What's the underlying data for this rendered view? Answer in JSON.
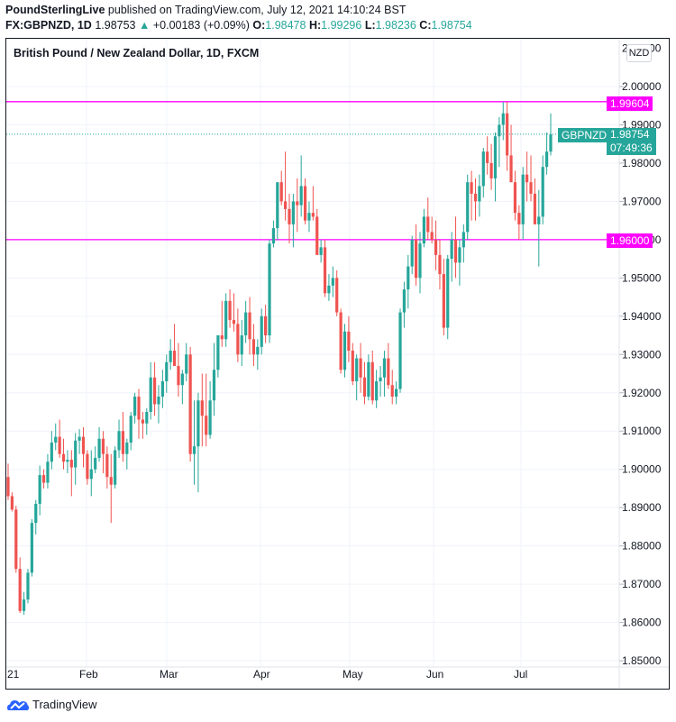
{
  "header": {
    "publisher": "PoundSterlingLive",
    "published_text": "published on TradingView.com, July 12, 2021 14:10:24 BST",
    "symbol": "FX:GBPNZD, 1D",
    "last": "1.98753",
    "change_arrow": "▲",
    "change": "+0.00183 (+0.09%)",
    "o_label": "O:",
    "o_value": "1.98478",
    "h_label": "H:",
    "h_value": "1.99296",
    "l_label": "L:",
    "l_value": "1.98236",
    "c_label": "C:",
    "c_value": "1.98754"
  },
  "chart": {
    "title": "British Pound / New Zealand Dollar, 1D, FXCM",
    "currency_badge": "NZD",
    "symbol_tag": "GBPNZD",
    "price_tag": "1.98754",
    "countdown": "07:49:36",
    "line_upper": "1.99604",
    "line_lower": "1.96000",
    "colors": {
      "up": "#26a69a",
      "down": "#ef5350",
      "hline": "#ff00ff",
      "grid": "#f0f3fa"
    }
  },
  "footer": {
    "brand": "TradingView"
  },
  "chart_data": {
    "type": "candlestick",
    "title": "British Pound / New Zealand Dollar, 1D, FXCM",
    "xlabel": "",
    "ylabel": "NZD",
    "x_tick_labels": [
      "21",
      "Feb",
      "Mar",
      "Apr",
      "May",
      "Jun",
      "Jul"
    ],
    "y_tick_labels": [
      "1.85000",
      "1.86000",
      "1.87000",
      "1.88000",
      "1.89000",
      "1.90000",
      "1.91000",
      "1.92000",
      "1.93000",
      "1.94000",
      "1.95000",
      "1.96000",
      "1.97000",
      "1.98000",
      "1.99000",
      "2.00000"
    ],
    "ylim": [
      1.85,
      2.01
    ],
    "horizontal_lines": [
      1.99604,
      1.96
    ],
    "last_price": 1.98754,
    "ohlc": [
      [
        1.898,
        1.9015,
        1.892,
        1.893
      ],
      [
        1.893,
        1.894,
        1.889,
        1.8895
      ],
      [
        1.8895,
        1.8905,
        1.873,
        1.874
      ],
      [
        1.874,
        1.877,
        1.8625,
        1.863
      ],
      [
        1.863,
        1.868,
        1.862,
        1.866
      ],
      [
        1.866,
        1.874,
        1.865,
        1.873
      ],
      [
        1.873,
        1.887,
        1.872,
        1.886
      ],
      [
        1.886,
        1.892,
        1.883,
        1.891
      ],
      [
        1.891,
        1.901,
        1.888,
        1.8985
      ],
      [
        1.8985,
        1.9,
        1.895,
        1.8965
      ],
      [
        1.8965,
        1.904,
        1.895,
        1.902
      ],
      [
        1.902,
        1.91,
        1.9,
        1.907
      ],
      [
        1.907,
        1.912,
        1.905,
        1.9085
      ],
      [
        1.9085,
        1.913,
        1.903,
        1.904
      ],
      [
        1.904,
        1.908,
        1.9,
        1.902
      ],
      [
        1.902,
        1.905,
        1.899,
        1.9025
      ],
      [
        1.9025,
        1.905,
        1.893,
        1.9005
      ],
      [
        1.9005,
        1.9095,
        1.896,
        1.9075
      ],
      [
        1.9075,
        1.9105,
        1.904,
        1.9085
      ],
      [
        1.9085,
        1.911,
        1.9005,
        1.904
      ],
      [
        1.904,
        1.905,
        1.896,
        1.8975
      ],
      [
        1.8975,
        1.905,
        1.893,
        1.9
      ],
      [
        1.9,
        1.906,
        1.899,
        1.903
      ],
      [
        1.903,
        1.911,
        1.902,
        1.908
      ],
      [
        1.908,
        1.91,
        1.899,
        1.904
      ],
      [
        1.904,
        1.906,
        1.895,
        1.898
      ],
      [
        1.898,
        1.904,
        1.886,
        1.896
      ],
      [
        1.896,
        1.906,
        1.895,
        1.905
      ],
      [
        1.905,
        1.913,
        1.903,
        1.91
      ],
      [
        1.91,
        1.915,
        1.902,
        1.904
      ],
      [
        1.904,
        1.908,
        1.9,
        1.907
      ],
      [
        1.907,
        1.915,
        1.905,
        1.914
      ],
      [
        1.914,
        1.92,
        1.912,
        1.919
      ],
      [
        1.919,
        1.921,
        1.908,
        1.913
      ],
      [
        1.913,
        1.915,
        1.908,
        1.912
      ],
      [
        1.912,
        1.916,
        1.909,
        1.915
      ],
      [
        1.915,
        1.928,
        1.913,
        1.924
      ],
      [
        1.924,
        1.928,
        1.914,
        1.917
      ],
      [
        1.917,
        1.922,
        1.912,
        1.919
      ],
      [
        1.919,
        1.926,
        1.916,
        1.923
      ],
      [
        1.923,
        1.93,
        1.92,
        1.928
      ],
      [
        1.928,
        1.934,
        1.926,
        1.931
      ],
      [
        1.931,
        1.938,
        1.928,
        1.927
      ],
      [
        1.927,
        1.933,
        1.919,
        1.922
      ],
      [
        1.922,
        1.926,
        1.917,
        1.925
      ],
      [
        1.925,
        1.933,
        1.923,
        1.93
      ],
      [
        1.93,
        1.932,
        1.902,
        1.904
      ],
      [
        1.904,
        1.918,
        1.896,
        1.906
      ],
      [
        1.906,
        1.92,
        1.894,
        1.918
      ],
      [
        1.918,
        1.925,
        1.906,
        1.914
      ],
      [
        1.914,
        1.925,
        1.906,
        1.909
      ],
      [
        1.909,
        1.923,
        1.908,
        1.918
      ],
      [
        1.918,
        1.933,
        1.914,
        1.926
      ],
      [
        1.926,
        1.935,
        1.924,
        1.935
      ],
      [
        1.935,
        1.944,
        1.932,
        1.934
      ],
      [
        1.934,
        1.946,
        1.932,
        1.944
      ],
      [
        1.944,
        1.947,
        1.937,
        1.939
      ],
      [
        1.939,
        1.946,
        1.936,
        1.938
      ],
      [
        1.938,
        1.942,
        1.928,
        1.93
      ],
      [
        1.93,
        1.939,
        1.927,
        1.935
      ],
      [
        1.935,
        1.944,
        1.933,
        1.941
      ],
      [
        1.941,
        1.945,
        1.93,
        1.934
      ],
      [
        1.934,
        1.938,
        1.927,
        1.93
      ],
      [
        1.93,
        1.934,
        1.926,
        1.932
      ],
      [
        1.932,
        1.942,
        1.93,
        1.94
      ],
      [
        1.94,
        1.943,
        1.933,
        1.935
      ],
      [
        1.935,
        1.96,
        1.933,
        1.959
      ],
      [
        1.959,
        1.965,
        1.958,
        1.963
      ],
      [
        1.963,
        1.975,
        1.96,
        1.975
      ],
      [
        1.975,
        1.978,
        1.969,
        1.97
      ],
      [
        1.97,
        1.983,
        1.965,
        1.968
      ],
      [
        1.968,
        1.972,
        1.959,
        1.964
      ],
      [
        1.964,
        1.972,
        1.958,
        1.97
      ],
      [
        1.97,
        1.976,
        1.962,
        1.969
      ],
      [
        1.969,
        1.982,
        1.966,
        1.974
      ],
      [
        1.974,
        1.976,
        1.964,
        1.965
      ],
      [
        1.965,
        1.97,
        1.962,
        1.967
      ],
      [
        1.967,
        1.974,
        1.965,
        1.966
      ],
      [
        1.966,
        1.968,
        1.956,
        1.956
      ],
      [
        1.956,
        1.96,
        1.954,
        1.958
      ],
      [
        1.958,
        1.96,
        1.945,
        1.946
      ],
      [
        1.946,
        1.951,
        1.944,
        1.948
      ],
      [
        1.948,
        1.953,
        1.945,
        1.95
      ],
      [
        1.95,
        1.952,
        1.94,
        1.941
      ],
      [
        1.941,
        1.942,
        1.925,
        1.926
      ],
      [
        1.926,
        1.938,
        1.924,
        1.936
      ],
      [
        1.936,
        1.94,
        1.928,
        1.931
      ],
      [
        1.931,
        1.933,
        1.922,
        1.923
      ],
      [
        1.923,
        1.93,
        1.918,
        1.929
      ],
      [
        1.929,
        1.933,
        1.92,
        1.924
      ],
      [
        1.924,
        1.928,
        1.917,
        1.919
      ],
      [
        1.919,
        1.93,
        1.918,
        1.928
      ],
      [
        1.928,
        1.931,
        1.917,
        1.918
      ],
      [
        1.918,
        1.926,
        1.916,
        1.923
      ],
      [
        1.923,
        1.927,
        1.919,
        1.924
      ],
      [
        1.924,
        1.931,
        1.919,
        1.929
      ],
      [
        1.929,
        1.933,
        1.921,
        1.922
      ],
      [
        1.922,
        1.926,
        1.917,
        1.919
      ],
      [
        1.919,
        1.923,
        1.917,
        1.921
      ],
      [
        1.921,
        1.942,
        1.92,
        1.941
      ],
      [
        1.941,
        1.949,
        1.937,
        1.947
      ],
      [
        1.947,
        1.956,
        1.942,
        1.953
      ],
      [
        1.953,
        1.961,
        1.951,
        1.96
      ],
      [
        1.96,
        1.964,
        1.948,
        1.95
      ],
      [
        1.95,
        1.962,
        1.946,
        1.959
      ],
      [
        1.959,
        1.968,
        1.958,
        1.966
      ],
      [
        1.966,
        1.971,
        1.96,
        1.962
      ],
      [
        1.962,
        1.966,
        1.959,
        1.96
      ],
      [
        1.96,
        1.965,
        1.952,
        1.956
      ],
      [
        1.956,
        1.96,
        1.947,
        1.951
      ],
      [
        1.951,
        1.955,
        1.935,
        1.937
      ],
      [
        1.937,
        1.956,
        1.934,
        1.955
      ],
      [
        1.955,
        1.962,
        1.949,
        1.96
      ],
      [
        1.96,
        1.966,
        1.95,
        1.954
      ],
      [
        1.954,
        1.96,
        1.948,
        1.958
      ],
      [
        1.958,
        1.964,
        1.954,
        1.962
      ],
      [
        1.962,
        1.977,
        1.96,
        1.975
      ],
      [
        1.975,
        1.978,
        1.965,
        1.972
      ],
      [
        1.972,
        1.976,
        1.965,
        1.97
      ],
      [
        1.97,
        1.977,
        1.966,
        1.974
      ],
      [
        1.974,
        1.984,
        1.971,
        1.983
      ],
      [
        1.983,
        1.987,
        1.977,
        1.98
      ],
      [
        1.98,
        1.985,
        1.973,
        1.976
      ],
      [
        1.976,
        1.988,
        1.97,
        1.987
      ],
      [
        1.987,
        1.992,
        1.979,
        1.99
      ],
      [
        1.99,
        1.996,
        1.986,
        1.993
      ],
      [
        1.993,
        1.996,
        1.978,
        1.982
      ],
      [
        1.982,
        1.99,
        1.976,
        1.975
      ],
      [
        1.975,
        1.978,
        1.965,
        1.967
      ],
      [
        1.967,
        1.969,
        1.96,
        1.964
      ],
      [
        1.964,
        1.979,
        1.96,
        1.977
      ],
      [
        1.977,
        1.983,
        1.97,
        1.975
      ],
      [
        1.975,
        1.982,
        1.97,
        1.972
      ],
      [
        1.972,
        1.976,
        1.964,
        1.964
      ],
      [
        1.964,
        1.973,
        1.953,
        1.966
      ],
      [
        1.966,
        1.982,
        1.964,
        1.979
      ],
      [
        1.979,
        1.988,
        1.977,
        1.983
      ],
      [
        1.983,
        1.993,
        1.982,
        1.9875
      ]
    ]
  }
}
